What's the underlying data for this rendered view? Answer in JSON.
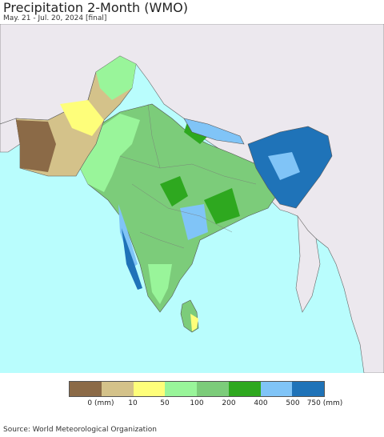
{
  "title": "Precipitation 2-Month (WMO)",
  "subtitle": "May. 21 - Jul. 20, 2024 [final]",
  "source": "Source: World Meteorological Organization",
  "colors": {
    "ocean": "#b9fdfd",
    "outside_land": "#ece8ee",
    "border": "#555555"
  },
  "legend": {
    "colors": [
      "#8b6a47",
      "#d4c28a",
      "#fefe7a",
      "#99f59a",
      "#7ccc7a",
      "#2ea81f",
      "#80c4f7",
      "#1f73b8"
    ],
    "labels": [
      "0 (mm)",
      "10",
      "50",
      "100",
      "200",
      "400",
      "500",
      "750 (mm)"
    ]
  }
}
